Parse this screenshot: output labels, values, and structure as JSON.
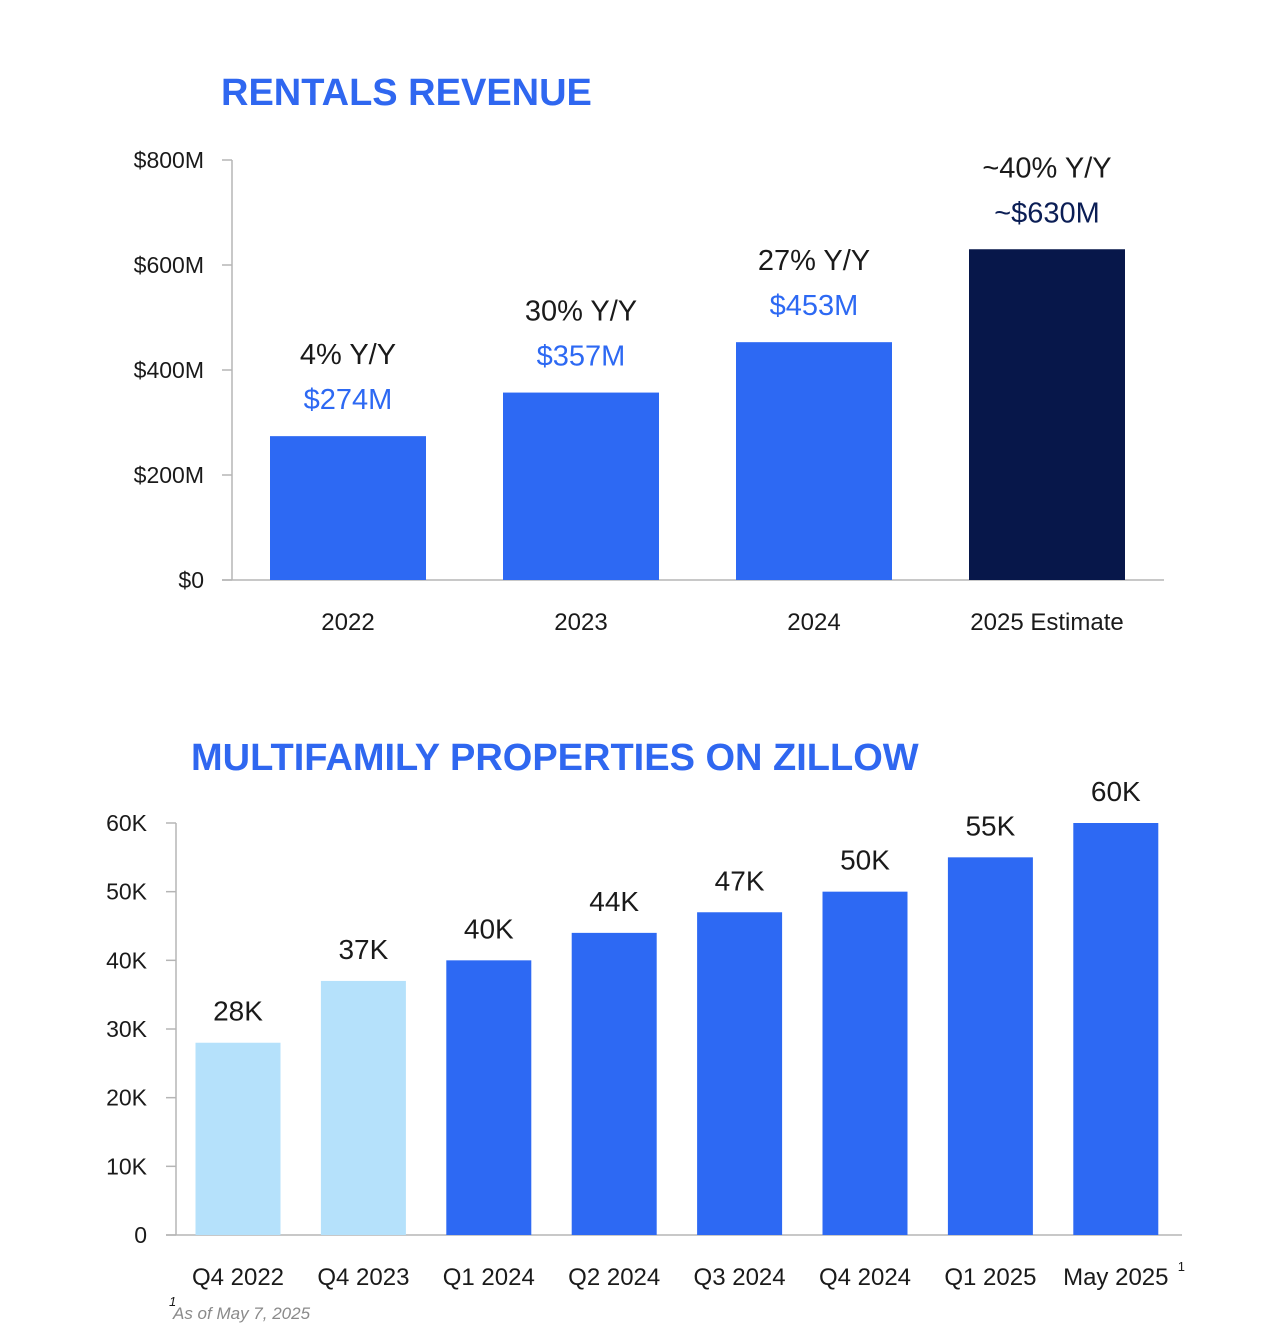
{
  "colors": {
    "title": "#2f67f0",
    "bar_primary": "#2d69f3",
    "bar_dark": "#07174a",
    "bar_light": "#b5e1fb",
    "value_label_blue": "#2d69f3",
    "value_label_dark": "#0b1e55",
    "axis": "#b5b5b5"
  },
  "chart_data": [
    {
      "type": "bar",
      "title": "RENTALS REVENUE",
      "categories": [
        "2022",
        "2023",
        "2024",
        "2025 Estimate"
      ],
      "values": [
        274,
        357,
        453,
        630
      ],
      "value_labels": [
        "$274M",
        "$357M",
        "$453M",
        "~$630M"
      ],
      "growth_labels": [
        "4% Y/Y",
        "30% Y/Y",
        "27% Y/Y",
        "~40% Y/Y"
      ],
      "bar_styles": [
        "primary",
        "primary",
        "primary",
        "dark"
      ],
      "y_ticks": [
        0,
        200,
        400,
        600,
        800
      ],
      "y_tick_labels": [
        "$0",
        "$200M",
        "$400M",
        "$600M",
        "$800M"
      ],
      "ylim": [
        0,
        800
      ],
      "grid": false
    },
    {
      "type": "bar",
      "title": "MULTIFAMILY PROPERTIES ON ZILLOW",
      "categories": [
        "Q4 2022",
        "Q4 2023",
        "Q1 2024",
        "Q2 2024",
        "Q3 2024",
        "Q4 2024",
        "Q1 2025",
        "May 2025"
      ],
      "category_superscript": [
        "",
        "",
        "",
        "",
        "",
        "",
        "",
        "1"
      ],
      "values": [
        28,
        37,
        40,
        44,
        47,
        50,
        55,
        60
      ],
      "value_labels": [
        "28K",
        "37K",
        "40K",
        "44K",
        "47K",
        "50K",
        "55K",
        "60K"
      ],
      "bar_styles": [
        "light",
        "light",
        "primary",
        "primary",
        "primary",
        "primary",
        "primary",
        "primary"
      ],
      "y_ticks": [
        0,
        10,
        20,
        30,
        40,
        50,
        60
      ],
      "y_tick_labels": [
        "0",
        "10K",
        "20K",
        "30K",
        "40K",
        "50K",
        "60K"
      ],
      "ylim": [
        0,
        60
      ],
      "grid": false,
      "footnote": {
        "marker": "1",
        "text": "As of May 7, 2025"
      }
    }
  ]
}
